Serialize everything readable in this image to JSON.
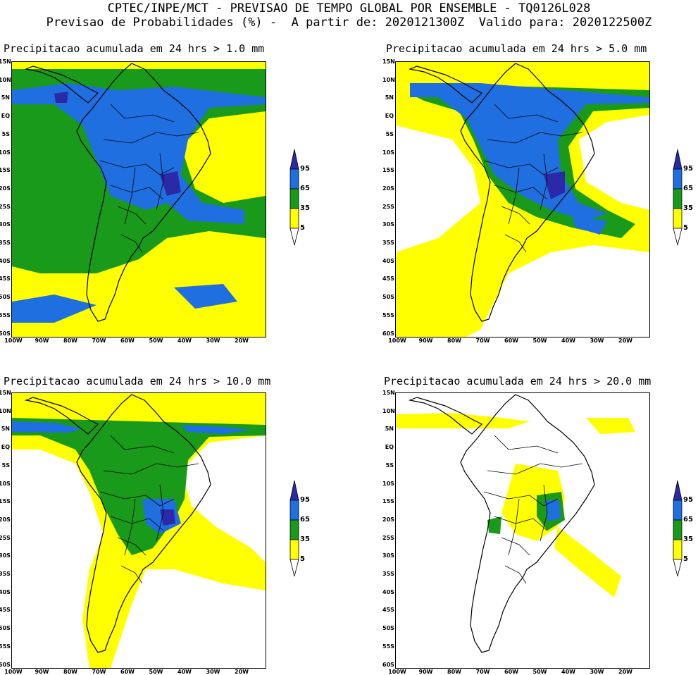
{
  "header": {
    "line1": "CPTEC/INPE/MCT - PREVISAO DE TEMPO GLOBAL POR ENSEMBLE - TQ0126L028",
    "line2": "Previsao de Probabilidades (%) -  A partir de: 2020121300Z  Valido para: 2020122500Z"
  },
  "panels": [
    {
      "title": "Precipitacao acumulada em 24 hrs > 1.0 mm"
    },
    {
      "title": "Precipitacao acumulada em 24 hrs > 5.0 mm"
    },
    {
      "title": "Precipitacao acumulada em 24 hrs > 10.0 mm"
    },
    {
      "title": "Precipitacao acumulada em 24 hrs > 20.0 mm"
    }
  ],
  "lat_labels": [
    "15N",
    "10N",
    "5N",
    "EQ",
    "5S",
    "10S",
    "15S",
    "20S",
    "25S",
    "30S",
    "35S",
    "40S",
    "45S",
    "50S",
    "55S",
    "60S"
  ],
  "lon_labels": [
    "100W",
    "90W",
    "80W",
    "70W",
    "60W",
    "50W",
    "40W",
    "30W",
    "20W"
  ],
  "legend": {
    "labels": [
      "95",
      "65",
      "35",
      "5"
    ],
    "colors": {
      "p5": "#ffff00",
      "p35": "#1a9a1a",
      "p65": "#1f6fe0",
      "p95": "#2a2aa8"
    }
  }
}
